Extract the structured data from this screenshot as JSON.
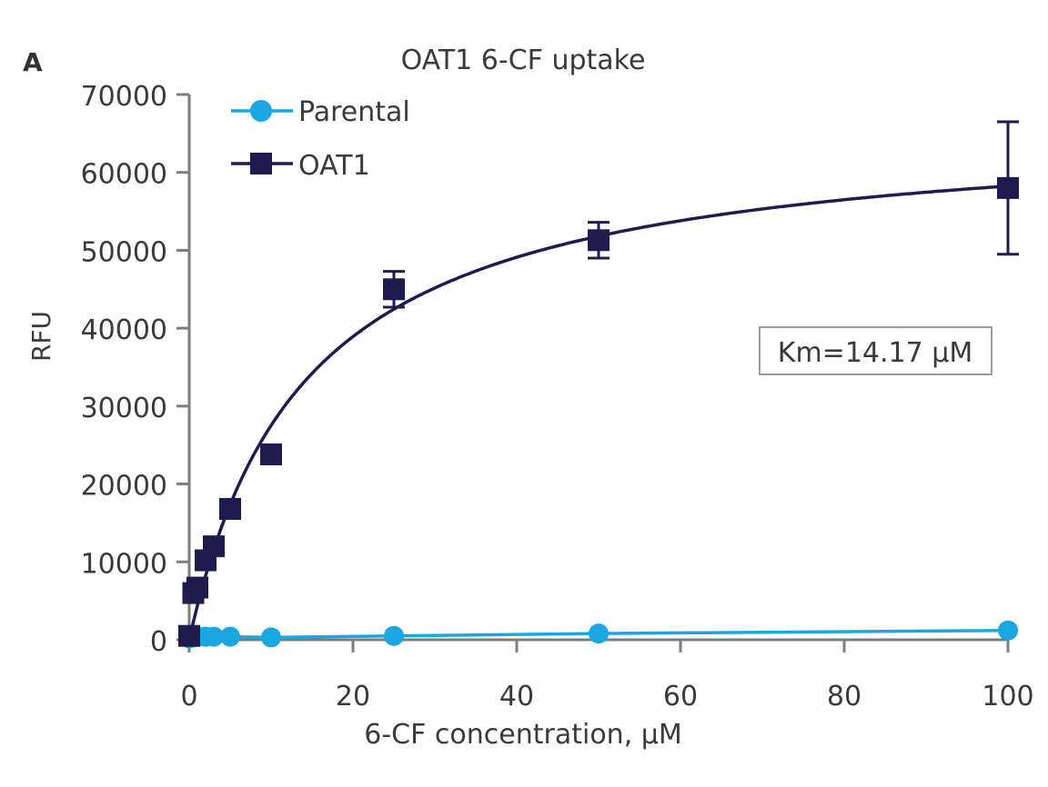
{
  "panel_label": "A",
  "chart_data": {
    "type": "scatter",
    "title": "OAT1 6-CF uptake",
    "xlabel": "6-CF concentration, μM",
    "ylabel": "RFU",
    "xlim": [
      0,
      100
    ],
    "ylim": [
      0,
      70000
    ],
    "xticks": [
      0,
      20,
      40,
      60,
      80,
      100
    ],
    "yticks": [
      0,
      10000,
      20000,
      30000,
      40000,
      50000,
      60000,
      70000
    ],
    "grid": false,
    "legend_position": "top-left",
    "annotation": "Km=14.17 μM",
    "series": [
      {
        "name": "Parental",
        "color": "#1aa6e0",
        "marker": "circle",
        "line": "connected",
        "x": [
          0,
          0.5,
          1,
          2,
          3,
          5,
          10,
          25,
          50,
          100
        ],
        "y": [
          200,
          300,
          400,
          400,
          400,
          400,
          300,
          500,
          800,
          1200
        ]
      },
      {
        "name": "OAT1",
        "color": "#1f1b4e",
        "marker": "square",
        "line": "michaelis-menten fit",
        "x": [
          0,
          0.5,
          1,
          2,
          3,
          5,
          10,
          25,
          50,
          100
        ],
        "y": [
          500,
          6000,
          6700,
          10200,
          12000,
          16800,
          23800,
          45000,
          51300,
          58000
        ],
        "error": [
          0,
          0,
          0,
          0,
          0,
          0,
          0,
          2300,
          2300,
          8500
        ],
        "fit": {
          "vmax": 66500,
          "km": 14.17
        }
      }
    ]
  }
}
